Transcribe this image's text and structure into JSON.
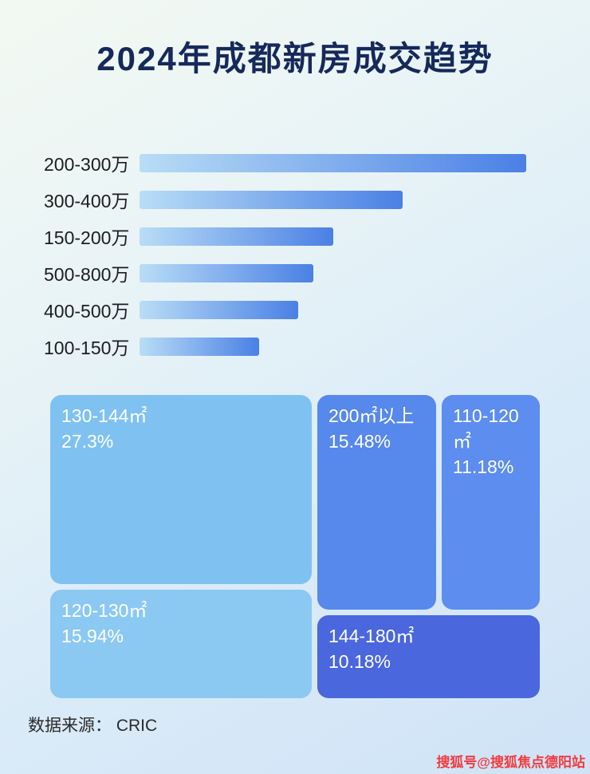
{
  "title": "2024年成都新房成交趋势",
  "colors": {
    "title_text": "#15295b",
    "bar_gradient_start": "#b9ddf6",
    "bar_gradient_end": "#4a80e5",
    "background_top": "#f3f9f2",
    "background_bottom": "#cfe3f7",
    "watermark_red": "#f23b3f"
  },
  "chart_data": [
    {
      "type": "bar",
      "orientation": "horizontal",
      "categories": [
        "200-300万",
        "300-400万",
        "150-200万",
        "500-800万",
        "400-500万",
        "100-150万"
      ],
      "values_relative": [
        100,
        68,
        50,
        45,
        41,
        31
      ],
      "note": "no numeric value labels shown; bar lengths estimated relative to longest bar = 100",
      "xlabel": "",
      "ylabel": "",
      "grid": false,
      "legend": false
    },
    {
      "type": "treemap",
      "items": [
        {
          "label": "130-144㎡",
          "value_pct": 27.3,
          "display": "27.3%",
          "color": "#7fc2f1"
        },
        {
          "label": "120-130㎡",
          "value_pct": 15.94,
          "display": "15.94%",
          "color": "#8bc9f3"
        },
        {
          "label": "200㎡以上",
          "value_pct": 15.48,
          "display": "15.48%",
          "color": "#5788ec"
        },
        {
          "label": "110-120㎡",
          "value_pct": 11.18,
          "display": "11.18%",
          "color": "#5c8def"
        },
        {
          "label": "144-180㎡",
          "value_pct": 10.18,
          "display": "10.18%",
          "color": "#4b67de"
        }
      ],
      "legend": false
    }
  ],
  "footer": {
    "source_label": "数据来源： CRIC"
  },
  "watermark": "搜狐号@搜狐焦点德阳站"
}
